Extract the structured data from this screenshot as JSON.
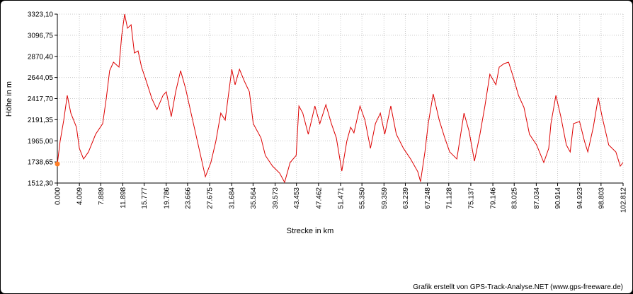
{
  "chart_data": {
    "type": "line",
    "x_label": "Strecke  in  km",
    "y_label": "Höhe  in  m",
    "credit": "Grafik erstellt von GPS-Track-Analyse.NET (www.gps-freeware.de)",
    "grid": true,
    "xlim": [
      0,
      102.812
    ],
    "ylim": [
      1512.3,
      3323.1
    ],
    "xticks": [
      {
        "value": 0,
        "label": "0.000"
      },
      {
        "value": 4.009,
        "label": "4.009"
      },
      {
        "value": 7.889,
        "label": "7.889"
      },
      {
        "value": 11.898,
        "label": "11.898"
      },
      {
        "value": 15.777,
        "label": "15.777"
      },
      {
        "value": 19.786,
        "label": "19.786"
      },
      {
        "value": 23.666,
        "label": "23.666"
      },
      {
        "value": 27.675,
        "label": "27.675"
      },
      {
        "value": 31.684,
        "label": "31.684"
      },
      {
        "value": 35.564,
        "label": "35.564"
      },
      {
        "value": 39.573,
        "label": "39.573"
      },
      {
        "value": 43.453,
        "label": "43.453"
      },
      {
        "value": 47.462,
        "label": "47.462"
      },
      {
        "value": 51.471,
        "label": "51.471"
      },
      {
        "value": 55.35,
        "label": "55.350"
      },
      {
        "value": 59.359,
        "label": "59.359"
      },
      {
        "value": 63.239,
        "label": "63.239"
      },
      {
        "value": 67.248,
        "label": "67.248"
      },
      {
        "value": 71.128,
        "label": "71.128"
      },
      {
        "value": 75.137,
        "label": "75.137"
      },
      {
        "value": 79.146,
        "label": "79.146"
      },
      {
        "value": 83.025,
        "label": "83.025"
      },
      {
        "value": 87.034,
        "label": "87.034"
      },
      {
        "value": 90.914,
        "label": "90.914"
      },
      {
        "value": 94.923,
        "label": "94.923"
      },
      {
        "value": 98.803,
        "label": "98.803"
      },
      {
        "value": 102.812,
        "label": "102.812"
      }
    ],
    "yticks": [
      {
        "value": 1512.3,
        "label": "1512,30"
      },
      {
        "value": 1738.65,
        "label": "1738,65"
      },
      {
        "value": 1965,
        "label": "1965,00"
      },
      {
        "value": 2191.35,
        "label": "2191,35"
      },
      {
        "value": 2417.7,
        "label": "2417,70"
      },
      {
        "value": 2644.05,
        "label": "2644,05"
      },
      {
        "value": 2870.4,
        "label": "2870,40"
      },
      {
        "value": 3096.75,
        "label": "3096,75"
      },
      {
        "value": 3323.1,
        "label": "3323,10"
      }
    ],
    "x": [
      0,
      0.5,
      1.16,
      1.8,
      2.45,
      3.47,
      4.0,
      4.76,
      5.66,
      6.95,
      8.24,
      8.88,
      9.5,
      10.2,
      11.2,
      11.7,
      12.23,
      12.74,
      13.4,
      14.0,
      14.67,
      15.3,
      15.96,
      17.2,
      18.1,
      19.2,
      19.8,
      20.7,
      21.5,
      22.4,
      23.3,
      24.3,
      25.6,
      26.9,
      27.9,
      28.8,
      29.7,
      30.5,
      31.0,
      31.7,
      32.3,
      33.1,
      34.0,
      34.9,
      35.6,
      37.0,
      37.8,
      39.1,
      40.4,
      41.3,
      42.3,
      43.4,
      43.9,
      44.6,
      45.6,
      46.8,
      47.7,
      48.8,
      49.8,
      50.7,
      51.7,
      52.6,
      53.3,
      53.9,
      55.0,
      55.9,
      56.9,
      57.8,
      58.7,
      59.5,
      60.6,
      61.6,
      62.9,
      64.2,
      65.5,
      66.0,
      66.8,
      67.4,
      68.3,
      69.4,
      70.4,
      71.3,
      72.6,
      73.2,
      73.9,
      74.8,
      75.8,
      76.8,
      77.7,
      78.6,
      79.7,
      80.3,
      81.2,
      82.0,
      82.9,
      83.8,
      84.8,
      85.8,
      87.1,
      88.4,
      89.3,
      89.7,
      90.6,
      91.5,
      92.5,
      93.2,
      93.8,
      94.9,
      95.8,
      96.4,
      97.4,
      98.3,
      99.0,
      100.2,
      101.5,
      102.3,
      102.8
    ],
    "series": [
      {
        "color": "#dd0000",
        "values": [
          1717,
          1959,
          2186,
          2452,
          2262,
          2111,
          1884,
          1770,
          1846,
          2035,
          2149,
          2414,
          2717,
          2808,
          2755,
          3096,
          3323,
          3172,
          3209,
          2906,
          2929,
          2755,
          2641,
          2414,
          2300,
          2452,
          2490,
          2224,
          2490,
          2717,
          2528,
          2262,
          1921,
          1580,
          1732,
          1959,
          2262,
          2187,
          2414,
          2732,
          2566,
          2732,
          2603,
          2490,
          2149,
          1997,
          1808,
          1694,
          1618,
          1520,
          1732,
          1808,
          2338,
          2262,
          2035,
          2338,
          2149,
          2353,
          2149,
          1997,
          1641,
          1959,
          2111,
          2050,
          2338,
          2187,
          1884,
          2149,
          2262,
          2035,
          2338,
          2035,
          1884,
          1770,
          1634,
          1527,
          1846,
          2149,
          2467,
          2187,
          1997,
          1846,
          1770,
          1997,
          2262,
          2073,
          1747,
          2035,
          2338,
          2679,
          2566,
          2755,
          2793,
          2808,
          2641,
          2452,
          2323,
          2035,
          1921,
          1732,
          1884,
          2149,
          2452,
          2224,
          1921,
          1846,
          2149,
          2172,
          1959,
          1846,
          2111,
          2429,
          2224,
          1921,
          1846,
          1694,
          1732
        ]
      }
    ],
    "marker_color": "#ff7f27"
  }
}
